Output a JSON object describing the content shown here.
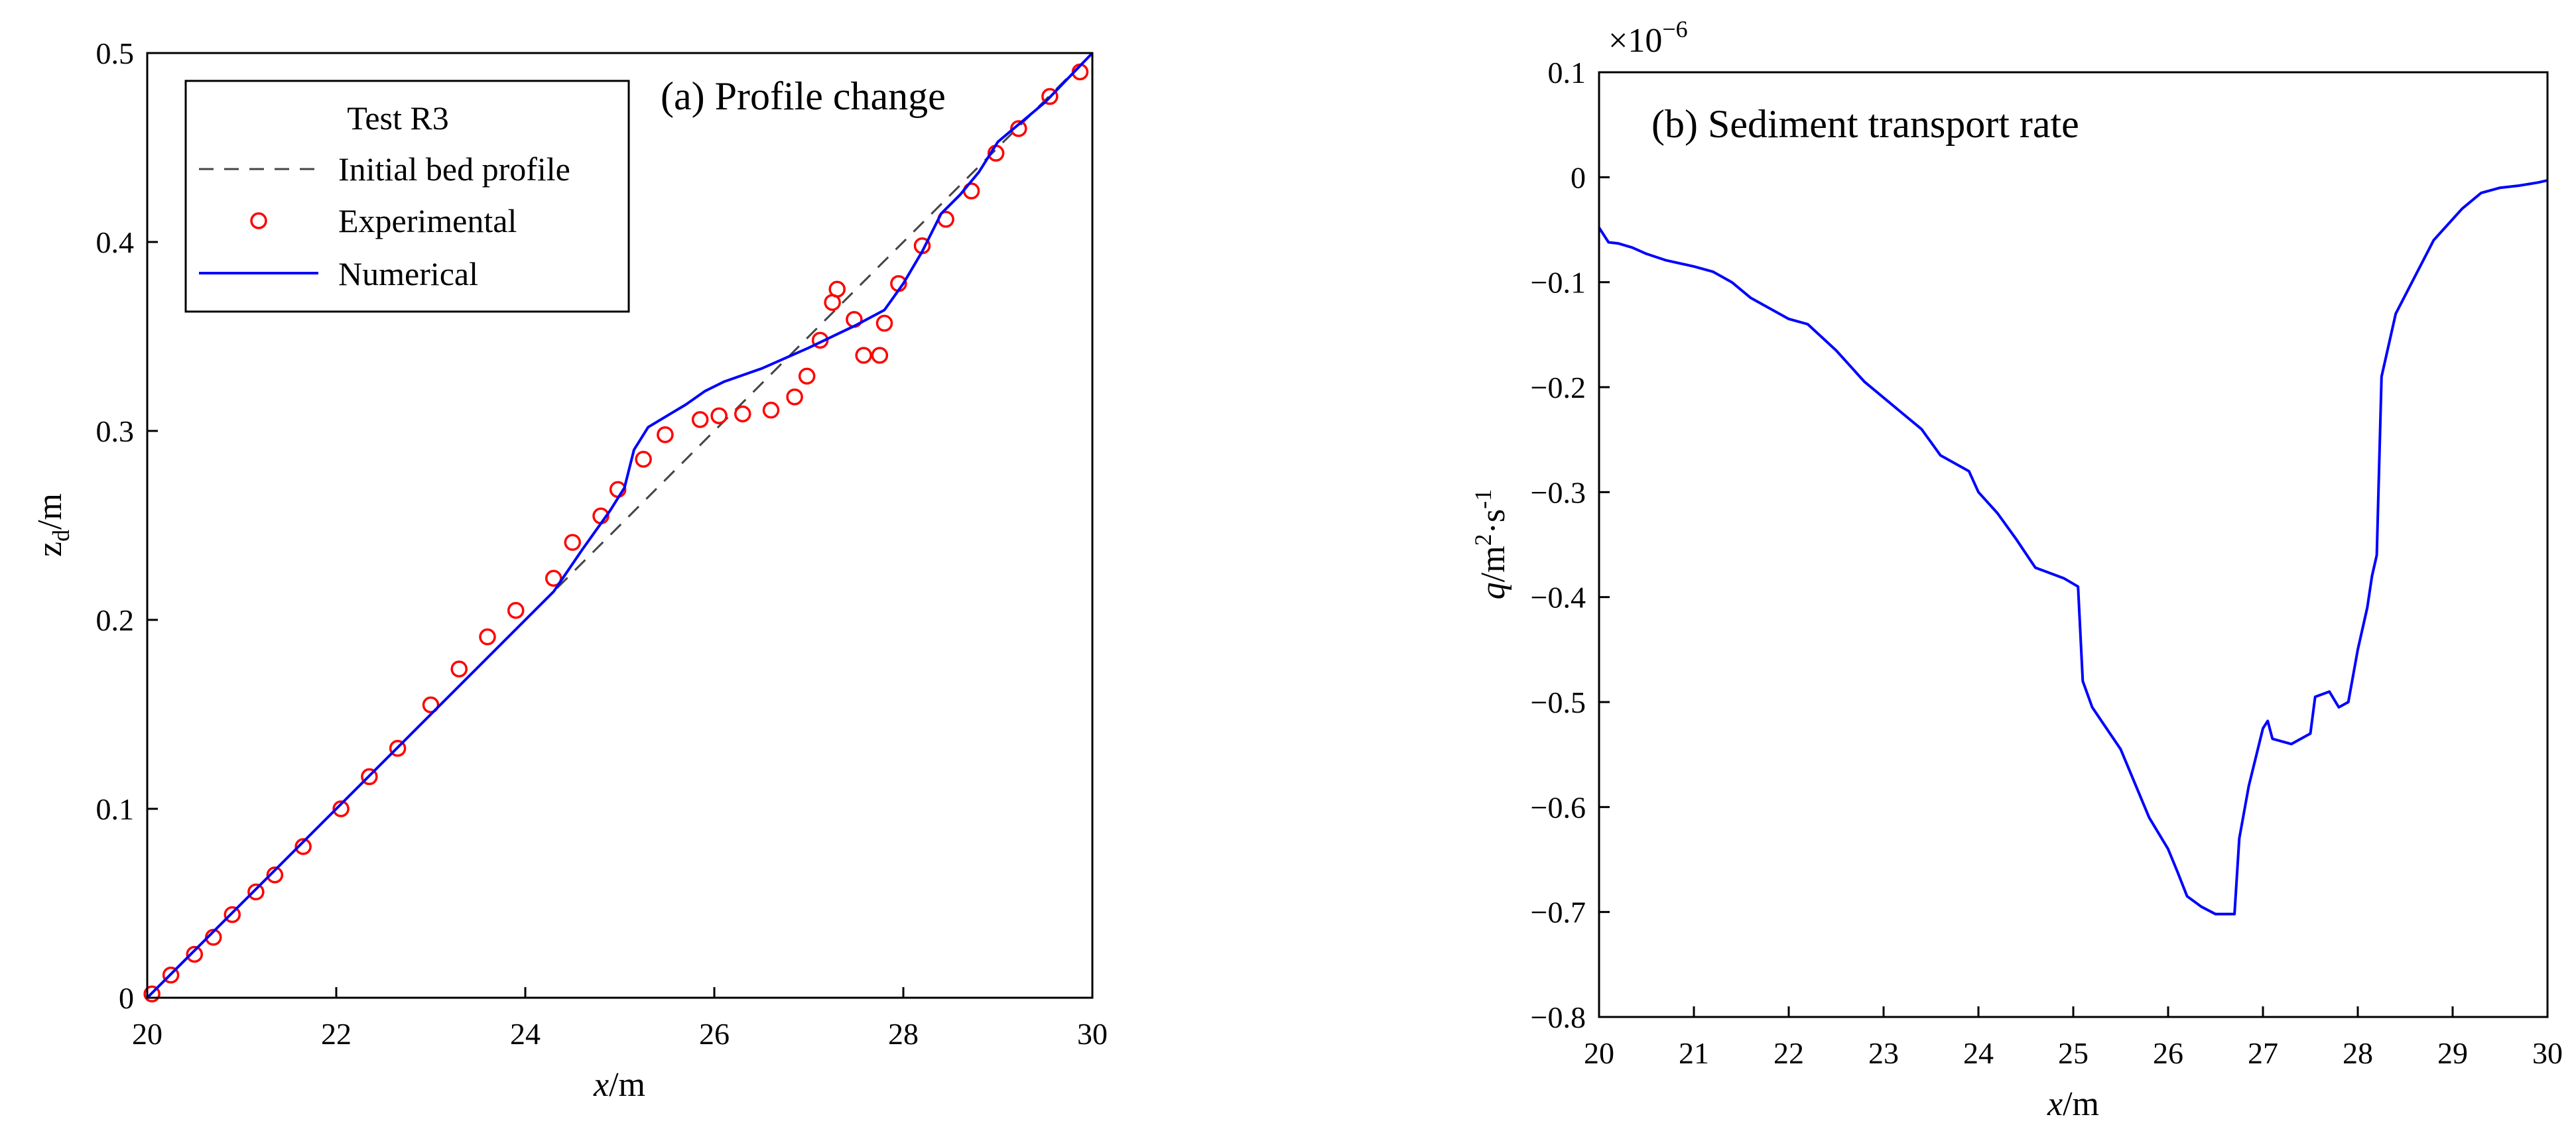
{
  "colors": {
    "experimental": "#ff0000",
    "numerical": "#0000ff",
    "initial": "#444444",
    "axes": "#000000"
  },
  "chart_data": [
    {
      "type": "line",
      "title": "(a) Profile change",
      "xlabel_var": "x",
      "xlabel_unit": "/m",
      "ylabel_var": "z",
      "ylabel_sub": "d",
      "ylabel_unit": "/m",
      "xlim": [
        20,
        30
      ],
      "ylim": [
        0,
        0.5
      ],
      "xticks": [
        20,
        22,
        24,
        26,
        28,
        30
      ],
      "xtick_labels": [
        "20",
        "22",
        "24",
        "26",
        "28",
        "30"
      ],
      "yticks": [
        0,
        0.1,
        0.2,
        0.3,
        0.4,
        0.5
      ],
      "ytick_labels": [
        "0",
        "0.1",
        "0.2",
        "0.3",
        "0.4",
        "0.5"
      ],
      "legend": {
        "title": "Test R3",
        "position": "top-left",
        "entries": [
          "Initial bed profile",
          "Experimental",
          "Numerical"
        ]
      },
      "series": [
        {
          "name": "Initial bed profile",
          "style": "dashed",
          "x": [
            20,
            30
          ],
          "y": [
            0,
            0.5
          ]
        },
        {
          "name": "Experimental",
          "style": "circle",
          "x": [
            20.05,
            20.25,
            20.5,
            20.7,
            20.9,
            21.15,
            21.35,
            21.65,
            22.05,
            22.35,
            22.65,
            23.0,
            23.3,
            23.6,
            23.9,
            24.3,
            24.5,
            24.8,
            24.98,
            25.25,
            25.48,
            25.85,
            26.05,
            26.3,
            26.6,
            26.85,
            26.98,
            27.12,
            27.25,
            27.3,
            27.48,
            27.58,
            27.75,
            27.8,
            27.95,
            28.2,
            28.45,
            28.72,
            28.98,
            29.22,
            29.55,
            29.87
          ],
          "y": [
            0.002,
            0.012,
            0.023,
            0.032,
            0.044,
            0.056,
            0.065,
            0.08,
            0.1,
            0.117,
            0.132,
            0.155,
            0.174,
            0.191,
            0.205,
            0.222,
            0.241,
            0.255,
            0.269,
            0.285,
            0.298,
            0.306,
            0.308,
            0.309,
            0.311,
            0.318,
            0.329,
            0.348,
            0.368,
            0.375,
            0.359,
            0.34,
            0.34,
            0.357,
            0.378,
            0.398,
            0.412,
            0.427,
            0.447,
            0.46,
            0.477,
            0.49
          ]
        },
        {
          "name": "Numerical",
          "style": "solid",
          "x": [
            20,
            24.3,
            24.6,
            24.9,
            25.05,
            25.15,
            25.3,
            25.5,
            25.7,
            25.9,
            26.1,
            26.5,
            27.0,
            27.5,
            27.8,
            28.0,
            28.2,
            28.4,
            28.6,
            28.8,
            29.0,
            29.5,
            30.0
          ],
          "y": [
            0,
            0.215,
            0.237,
            0.258,
            0.27,
            0.29,
            0.302,
            0.308,
            0.314,
            0.321,
            0.326,
            0.333,
            0.344,
            0.356,
            0.364,
            0.378,
            0.395,
            0.415,
            0.425,
            0.437,
            0.453,
            0.474,
            0.5
          ]
        }
      ]
    },
    {
      "type": "line",
      "title": "(b) Sediment transport rate",
      "xlabel_var": "x",
      "xlabel_unit": "/m",
      "ylabel_var": "q",
      "ylabel_unit": "/m",
      "ylabel_sup1": "2",
      "ylabel_mid": "·s",
      "ylabel_sup2": "-1",
      "multiplier_base": "×10",
      "multiplier_exp": "−6",
      "xlim": [
        20,
        30
      ],
      "ylim": [
        -0.8,
        0.1
      ],
      "xticks": [
        20,
        21,
        22,
        23,
        24,
        25,
        26,
        27,
        28,
        29,
        30
      ],
      "xtick_labels": [
        "20",
        "21",
        "22",
        "23",
        "24",
        "25",
        "26",
        "27",
        "28",
        "29",
        "30"
      ],
      "yticks": [
        0.1,
        0,
        -0.1,
        -0.2,
        -0.3,
        -0.4,
        -0.5,
        -0.6,
        -0.7,
        -0.8
      ],
      "ytick_labels": [
        "0.1",
        "0",
        "−0.1",
        "−0.2",
        "−0.3",
        "−0.4",
        "−0.5",
        "−0.6",
        "−0.7",
        "−0.8"
      ],
      "series": [
        {
          "name": "q",
          "style": "solid",
          "x": [
            20.0,
            20.1,
            20.2,
            20.35,
            20.5,
            20.7,
            21.0,
            21.2,
            21.4,
            21.6,
            21.8,
            22.0,
            22.2,
            22.5,
            22.8,
            23.0,
            23.2,
            23.4,
            23.6,
            23.9,
            24.0,
            24.2,
            24.4,
            24.6,
            24.9,
            25.05,
            25.1,
            25.2,
            25.5,
            25.8,
            26.0,
            26.1,
            26.2,
            26.35,
            26.5,
            26.55,
            26.7,
            26.75,
            26.85,
            27.0,
            27.05,
            27.1,
            27.3,
            27.5,
            27.55,
            27.7,
            27.8,
            27.9,
            28.0,
            28.1,
            28.15,
            28.2,
            28.25,
            28.4,
            28.6,
            28.8,
            28.95,
            29.1,
            29.3,
            29.5,
            29.7,
            29.9,
            30.0
          ],
          "y": [
            -0.048,
            -0.062,
            -0.063,
            -0.067,
            -0.073,
            -0.079,
            -0.085,
            -0.09,
            -0.1,
            -0.115,
            -0.125,
            -0.135,
            -0.14,
            -0.165,
            -0.195,
            -0.21,
            -0.225,
            -0.24,
            -0.265,
            -0.28,
            -0.3,
            -0.32,
            -0.345,
            -0.372,
            -0.382,
            -0.39,
            -0.48,
            -0.505,
            -0.545,
            -0.61,
            -0.64,
            -0.662,
            -0.685,
            -0.695,
            -0.702,
            -0.702,
            -0.702,
            -0.63,
            -0.58,
            -0.525,
            -0.518,
            -0.535,
            -0.54,
            -0.53,
            -0.495,
            -0.49,
            -0.505,
            -0.5,
            -0.45,
            -0.41,
            -0.38,
            -0.36,
            -0.19,
            -0.13,
            -0.095,
            -0.06,
            -0.045,
            -0.03,
            -0.015,
            -0.01,
            -0.008,
            -0.005,
            -0.003
          ]
        }
      ]
    }
  ]
}
